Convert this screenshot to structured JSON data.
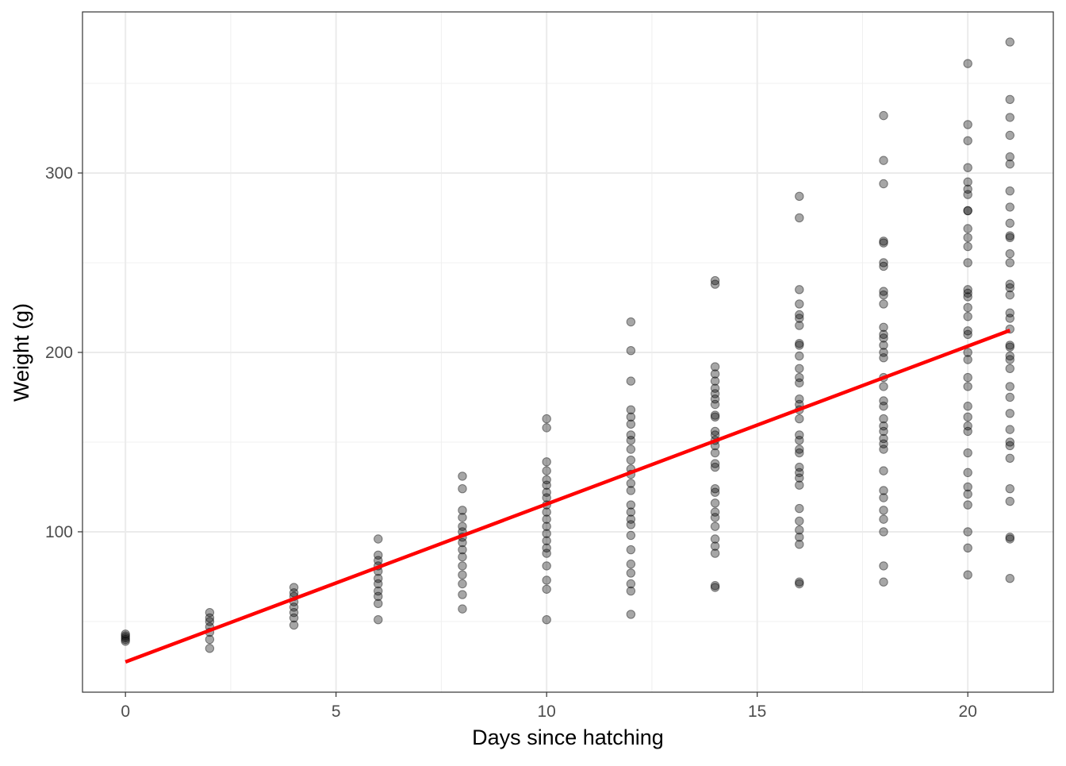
{
  "chart_data": {
    "type": "scatter",
    "title": "",
    "xlabel": "Days since hatching",
    "ylabel": "Weight (g)",
    "xlim": [
      -1.02,
      22.03
    ],
    "ylim": [
      10.6,
      389.8
    ],
    "x_ticks": [
      0,
      5,
      10,
      15,
      20
    ],
    "x_tick_labels": [
      "0",
      "5",
      "10",
      "15",
      "20"
    ],
    "y_ticks": [
      100,
      200,
      300
    ],
    "y_tick_labels": [
      "100",
      "200",
      "300"
    ],
    "x_minor": [
      2.5,
      7.5,
      12.5,
      17.5
    ],
    "y_minor": [
      50,
      150,
      250,
      350
    ],
    "grid": true,
    "theme": "bw",
    "point_color": "#000000",
    "point_alpha": 0.35,
    "line_color": "#FF0000",
    "regression_line": {
      "intercept": 27.47,
      "slope": 8.8,
      "x_range": [
        0,
        21
      ]
    },
    "points_by_day": [
      {
        "x": 0,
        "y": [
          39,
          40,
          41,
          42,
          43
        ]
      },
      {
        "x": 2,
        "y": [
          55,
          52,
          50,
          47,
          44,
          40,
          35
        ]
      },
      {
        "x": 4,
        "y": [
          69,
          66,
          64,
          61,
          58,
          55,
          52,
          48
        ]
      },
      {
        "x": 6,
        "y": [
          96,
          87,
          84,
          81,
          78,
          74,
          71,
          67,
          64,
          60,
          51
        ]
      },
      {
        "x": 8,
        "y": [
          131,
          124,
          112,
          108,
          103,
          100,
          97,
          94,
          90,
          86,
          81,
          76,
          71,
          65,
          57
        ]
      },
      {
        "x": 10,
        "y": [
          163,
          158,
          139,
          134,
          129,
          126,
          122,
          119,
          115,
          111,
          107,
          103,
          99,
          95,
          91,
          88,
          81,
          73,
          68,
          51
        ]
      },
      {
        "x": 12,
        "y": [
          217,
          201,
          184,
          168,
          164,
          160,
          154,
          151,
          146,
          140,
          135,
          132,
          127,
          123,
          115,
          111,
          107,
          104,
          98,
          90,
          82,
          77,
          71,
          67,
          54
        ]
      },
      {
        "x": 14,
        "y": [
          240,
          238,
          192,
          188,
          184,
          180,
          177,
          174,
          171,
          165,
          164,
          156,
          154,
          151,
          148,
          144,
          138,
          136,
          124,
          122,
          116,
          111,
          108,
          103,
          96,
          92,
          88,
          70,
          69
        ]
      },
      {
        "x": 16,
        "y": [
          287,
          275,
          235,
          227,
          221,
          219,
          215,
          205,
          204,
          198,
          191,
          186,
          183,
          174,
          171,
          168,
          163,
          154,
          151,
          146,
          144,
          136,
          133,
          130,
          126,
          113,
          106,
          101,
          97,
          93,
          72,
          71
        ]
      },
      {
        "x": 18,
        "y": [
          332,
          307,
          294,
          262,
          261,
          250,
          248,
          234,
          232,
          227,
          214,
          210,
          208,
          204,
          200,
          197,
          186,
          181,
          173,
          170,
          163,
          159,
          156,
          152,
          149,
          146,
          134,
          123,
          119,
          112,
          107,
          100,
          81,
          72
        ]
      },
      {
        "x": 20,
        "y": [
          361,
          327,
          318,
          303,
          295,
          291,
          288,
          279,
          279,
          269,
          264,
          259,
          250,
          235,
          233,
          231,
          225,
          220,
          212,
          210,
          200,
          196,
          186,
          181,
          170,
          164,
          159,
          156,
          144,
          133,
          125,
          121,
          115,
          100,
          91,
          76
        ]
      },
      {
        "x": 21,
        "y": [
          373,
          341,
          331,
          321,
          309,
          305,
          290,
          281,
          272,
          265,
          264,
          255,
          250,
          238,
          236,
          232,
          222,
          219,
          213,
          204,
          203,
          198,
          196,
          191,
          181,
          175,
          166,
          157,
          150,
          148,
          141,
          124,
          117,
          97,
          96,
          74
        ]
      }
    ]
  }
}
